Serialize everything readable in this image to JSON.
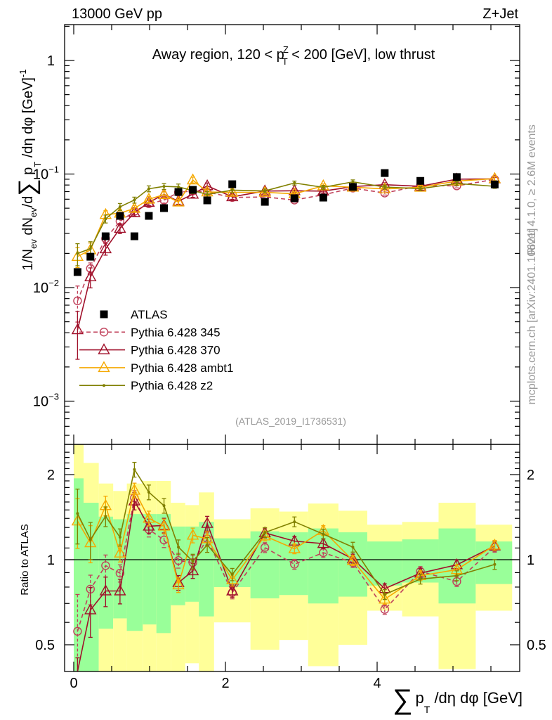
{
  "chart_data": [
    {
      "type": "line",
      "panel": "main",
      "header_left": "13000 GeV pp",
      "header_right": "Z+Jet",
      "title": {
        "pre": "Away region, 120 < p",
        "sup": "Z",
        "sub": "T",
        "post": " < 200 [GeV], low thrust"
      },
      "ylabel": {
        "a": "1/N",
        "a_sub": "ev",
        "b": " dN",
        "b_sub": "ev",
        "c": "/d",
        "sum": "∑",
        "d": " p",
        "d_sub": "T",
        "e": " /dη dφ  [GeV]",
        "e_sup": "-1"
      },
      "yscale": "log",
      "ylim": [
        0.00042,
        2.07
      ],
      "yticks": [
        {
          "value": 1,
          "label": "1",
          "exp": ""
        },
        {
          "value": 0.1,
          "label": "10",
          "exp": "−1"
        },
        {
          "value": 0.01,
          "label": "10",
          "exp": "−2"
        },
        {
          "value": 0.001,
          "label": "10",
          "exp": "−3"
        }
      ],
      "side_text_1": "Rivet 4.1.0, ≥ 2.6M events",
      "side_text_2": "mcplots.cern.ch [arXiv:2401.10621]",
      "analysis_id": "(ATLAS_2019_I1736531)",
      "legend_position": "lower-left",
      "x": [
        0.05,
        0.22,
        0.42,
        0.61,
        0.8,
        0.99,
        1.19,
        1.38,
        1.57,
        1.76,
        2.09,
        2.52,
        2.91,
        3.29,
        3.68,
        4.1,
        4.57,
        5.05,
        5.55
      ],
      "data": {
        "name": "ATLAS",
        "color": "#000000",
        "values": [
          0.0137,
          0.0187,
          0.0283,
          0.0428,
          0.0283,
          0.0428,
          0.0501,
          0.0695,
          0.0726,
          0.0586,
          0.0813,
          0.0569,
          0.0612,
          0.062,
          0.077,
          0.102,
          0.087,
          0.094,
          0.081
        ]
      },
      "series": [
        {
          "name": "Pythia 6.428 345",
          "color": "#c0405a",
          "marker": "circle",
          "dash": true,
          "ratio": [
            0.558,
            0.787,
            0.953,
            0.896,
            1.654,
            1.28,
            1.174,
            0.993,
            0.977,
            1.185,
            0.765,
            1.104,
            0.964,
            1.059,
            0.977,
            0.667,
            0.909,
            0.837,
            1.108
          ],
          "rel_err": [
            0.35,
            0.12,
            0.09,
            0.07,
            0.06,
            0.06,
            0.06,
            0.06,
            0.06,
            0.05,
            0.05,
            0.04,
            0.04,
            0.04,
            0.04,
            0.04,
            0.04,
            0.04,
            0.04
          ]
        },
        {
          "name": "Pythia 6.428 370",
          "color": "#a0102a",
          "marker": "triangle",
          "dash": false,
          "ratio": [
            0.31,
            0.664,
            0.775,
            0.775,
            1.613,
            1.313,
            1.322,
            0.829,
            0.913,
            1.343,
            0.775,
            1.244,
            1.163,
            1.14,
            1.006,
            0.79,
            0.896,
            0.959,
            1.118
          ],
          "rel_err": [
            0.45,
            0.2,
            0.12,
            0.1,
            0.07,
            0.06,
            0.06,
            0.06,
            0.06,
            0.06,
            0.05,
            0.04,
            0.04,
            0.04,
            0.04,
            0.04,
            0.04,
            0.04,
            0.04
          ]
        },
        {
          "name": "Pythia 6.428 ambt1",
          "color": "#f5a800",
          "marker": "triangle",
          "dash": false,
          "ratio": [
            1.37,
            1.147,
            1.553,
            1.055,
            1.76,
            1.401,
            1.313,
            0.814,
            1.22,
            1.185,
            0.849,
            1.213,
            1.093,
            1.268,
            0.993,
            0.725,
            0.878,
            0.922,
            1.125
          ],
          "rel_err": [
            0.2,
            0.15,
            0.08,
            0.07,
            0.06,
            0.06,
            0.06,
            0.06,
            0.06,
            0.06,
            0.05,
            0.04,
            0.04,
            0.04,
            0.04,
            0.04,
            0.04,
            0.04,
            0.04
          ]
        },
        {
          "name": "Pythia 6.428 z2",
          "color": "#808000",
          "marker": "dot",
          "dash": false,
          "ratio": [
            1.457,
            1.178,
            1.423,
            1.201,
            2.085,
            1.733,
            1.553,
            1.108,
            0.986,
            1.129,
            0.887,
            1.248,
            1.362,
            1.232,
            1.108,
            0.753,
            0.854,
            0.878,
            0.962
          ],
          "rel_err": [
            0.22,
            0.15,
            0.08,
            0.07,
            0.06,
            0.06,
            0.06,
            0.06,
            0.06,
            0.06,
            0.05,
            0.04,
            0.04,
            0.04,
            0.04,
            0.04,
            0.04,
            0.04,
            0.04
          ]
        }
      ]
    },
    {
      "type": "line",
      "panel": "ratio",
      "ylabel": "Ratio to ATLAS",
      "xlabel": {
        "sum": "∑",
        "p": "p",
        "p_sub": "T",
        "rest": " /dη dφ [GeV]"
      },
      "yscale": "log",
      "ylim": [
        0.4,
        2.56
      ],
      "xlim": [
        -0.12,
        5.88
      ],
      "xticks": [
        {
          "value": 0,
          "label": "0"
        },
        {
          "value": 2,
          "label": "2"
        },
        {
          "value": 4,
          "label": "4"
        }
      ],
      "yticks": [
        {
          "value": 2,
          "label": "2"
        },
        {
          "value": 1,
          "label": "1"
        },
        {
          "value": 0.5,
          "label": "0.5"
        }
      ],
      "band_colors": {
        "inner": "#99ff99",
        "outer": "#ffff99"
      },
      "bin_edges": [
        0,
        0.13,
        0.33,
        0.52,
        0.7,
        0.91,
        1.09,
        1.28,
        1.47,
        1.65,
        1.85,
        2.33,
        2.71,
        3.09,
        3.49,
        3.87,
        4.33,
        4.81,
        5.3,
        5.78
      ],
      "inner_band": [
        [
          0.3,
          1.94
        ],
        [
          0.3,
          1.59
        ],
        [
          0.57,
          1.42
        ],
        [
          0.62,
          1.39
        ],
        [
          0.56,
          1.45
        ],
        [
          0.59,
          1.45
        ],
        [
          0.55,
          1.45
        ],
        [
          0.69,
          1.31
        ],
        [
          0.71,
          1.31
        ],
        [
          0.63,
          1.36
        ],
        [
          0.8,
          1.19
        ],
        [
          0.73,
          1.26
        ],
        [
          0.75,
          1.25
        ],
        [
          0.7,
          1.29
        ],
        [
          0.74,
          1.25
        ],
        [
          0.81,
          1.16
        ],
        [
          0.83,
          1.18
        ],
        [
          0.7,
          1.29
        ],
        [
          0.82,
          1.16
        ]
      ],
      "outer_band": [
        [
          0.3,
          2.6
        ],
        [
          0.3,
          2.2
        ],
        [
          0.3,
          1.86
        ],
        [
          0.3,
          1.75
        ],
        [
          0.3,
          1.86
        ],
        [
          0.3,
          1.9
        ],
        [
          0.3,
          1.9
        ],
        [
          0.3,
          1.59
        ],
        [
          0.43,
          1.56
        ],
        [
          0.3,
          1.73
        ],
        [
          0.6,
          1.39
        ],
        [
          0.48,
          1.52
        ],
        [
          0.52,
          1.48
        ],
        [
          0.42,
          1.58
        ],
        [
          0.5,
          1.49
        ],
        [
          0.66,
          1.33
        ],
        [
          0.63,
          1.36
        ],
        [
          0.41,
          1.59
        ],
        [
          0.66,
          1.33
        ]
      ]
    }
  ]
}
